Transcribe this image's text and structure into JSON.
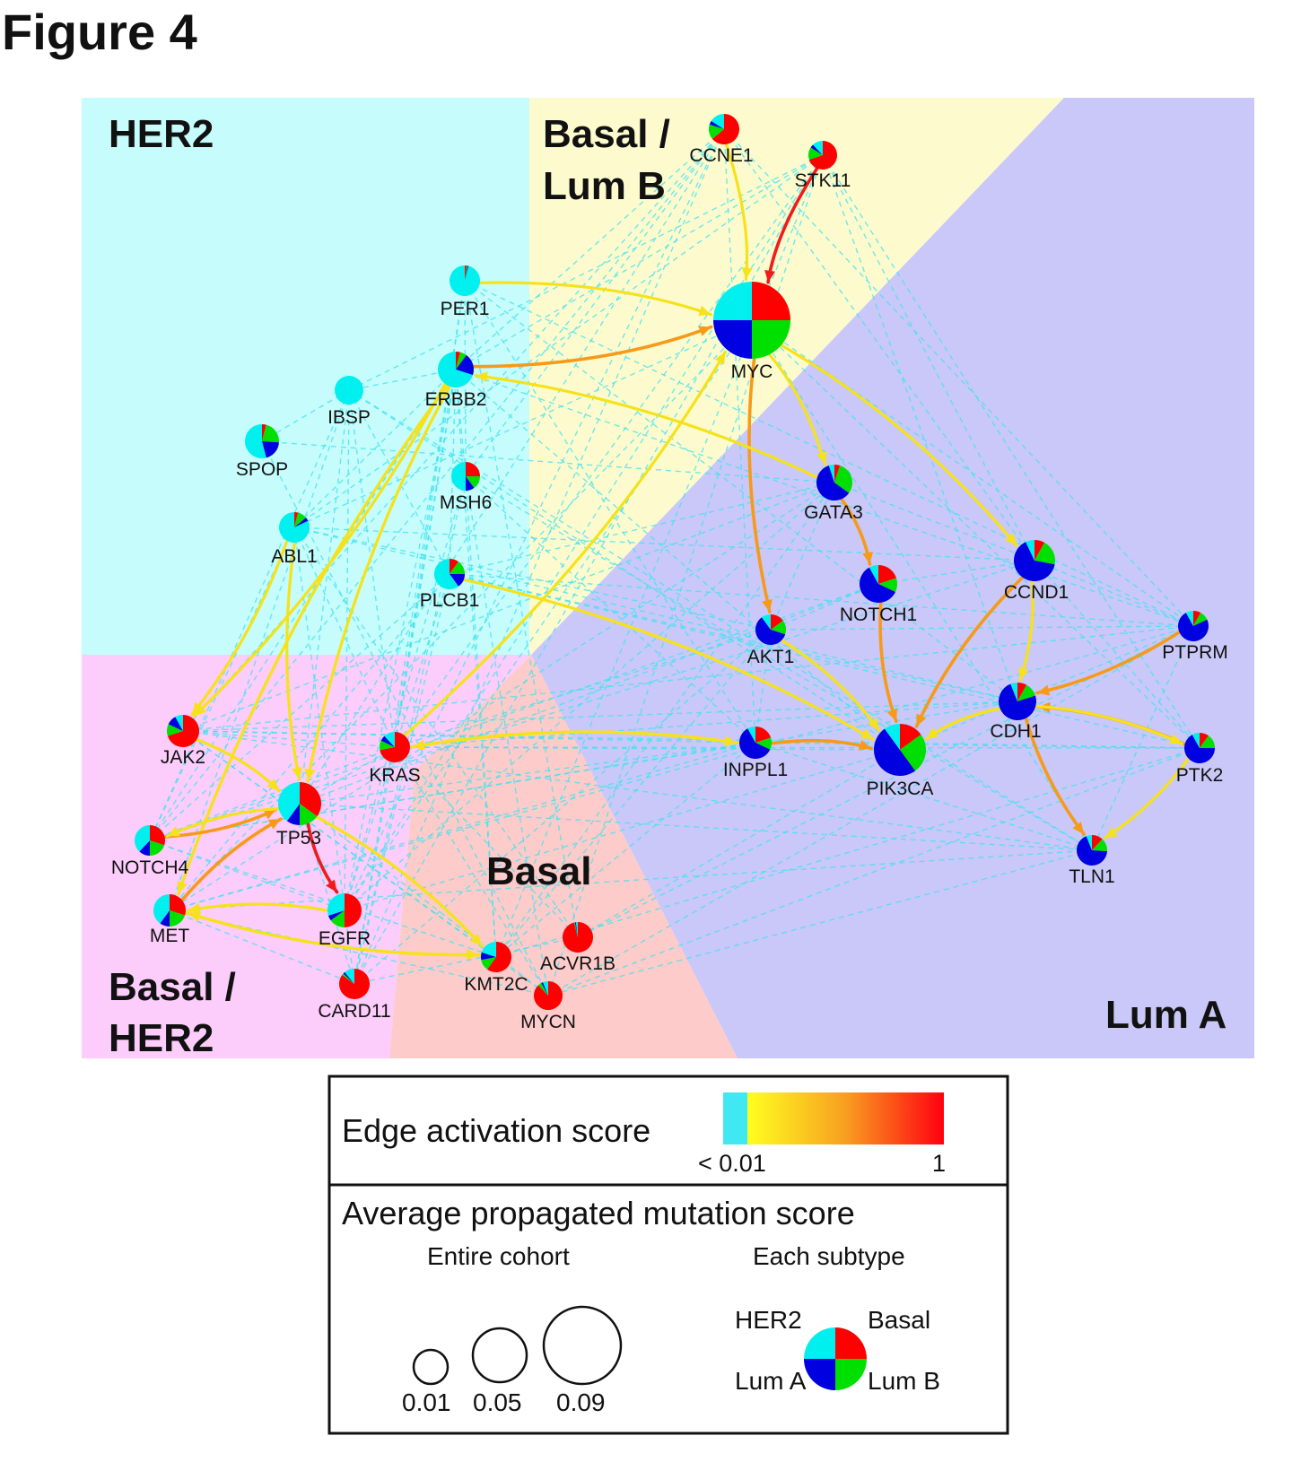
{
  "title": "Figure 4",
  "regions": [
    {
      "id": "her2",
      "label_lines": [
        "HER2"
      ],
      "color": "#c6fcfc"
    },
    {
      "id": "basal-lumb",
      "label_lines": [
        "Basal /",
        "Lum B"
      ],
      "color": "#fdfbce"
    },
    {
      "id": "luma",
      "label_lines": [
        "Lum A"
      ],
      "color": "#c9c8f8"
    },
    {
      "id": "basal-her2",
      "label_lines": [
        "Basal /",
        "HER2"
      ],
      "color": "#fcccfa"
    },
    {
      "id": "basal",
      "label_lines": [
        "Basal"
      ],
      "color": "#fdcbca"
    }
  ],
  "subtype_colors": {
    "HER2": "#00f0f0",
    "Basal": "#ff0000",
    "LumA": "#0000e0",
    "LumB": "#00e000"
  },
  "edge_colors": {
    "low": "#3fe3f0",
    "yellow": "#f6e21a",
    "orange": "#f79a1a",
    "red": "#ee1c1c"
  },
  "nodes": [
    {
      "id": "CCNE1",
      "label": "CCNE1",
      "fr": [
        0.64,
        0.16,
        0.04,
        0.16
      ]
    },
    {
      "id": "STK11",
      "label": "STK11",
      "fr": [
        0.7,
        0.14,
        0.04,
        0.12
      ]
    },
    {
      "id": "PER1",
      "label": "PER1",
      "fr": [
        0.02,
        0.01,
        0.01,
        0.96
      ]
    },
    {
      "id": "MYC",
      "label": "MYC",
      "fr": [
        0.25,
        0.25,
        0.25,
        0.25
      ]
    },
    {
      "id": "ERBB2",
      "label": "ERBB2",
      "fr": [
        0.04,
        0.06,
        0.2,
        0.7
      ]
    },
    {
      "id": "IBSP",
      "label": "IBSP",
      "fr": [
        0,
        0,
        0,
        1
      ]
    },
    {
      "id": "SPOP",
      "label": "SPOP",
      "fr": [
        0.04,
        0.22,
        0.2,
        0.54
      ]
    },
    {
      "id": "MSH6",
      "label": "MSH6",
      "fr": [
        0.25,
        0.15,
        0.1,
        0.5
      ]
    },
    {
      "id": "ABL1",
      "label": "ABL1",
      "fr": [
        0.04,
        0.1,
        0.04,
        0.82
      ]
    },
    {
      "id": "PLCB1",
      "label": "PLCB1",
      "fr": [
        0.1,
        0.15,
        0.15,
        0.6
      ]
    },
    {
      "id": "GATA3",
      "label": "GATA3",
      "fr": [
        0.05,
        0.3,
        0.6,
        0.05
      ]
    },
    {
      "id": "CCND1",
      "label": "CCND1",
      "fr": [
        0.08,
        0.2,
        0.65,
        0.07
      ]
    },
    {
      "id": "NOTCH1",
      "label": "NOTCH1",
      "fr": [
        0.2,
        0.12,
        0.6,
        0.08
      ]
    },
    {
      "id": "AKT1",
      "label": "AKT1",
      "fr": [
        0.15,
        0.15,
        0.6,
        0.1
      ]
    },
    {
      "id": "PTPRM",
      "label": "PTPRM",
      "fr": [
        0.08,
        0.1,
        0.74,
        0.08
      ]
    },
    {
      "id": "CDH1",
      "label": "CDH1",
      "fr": [
        0.08,
        0.12,
        0.74,
        0.06
      ]
    },
    {
      "id": "JAK2",
      "label": "JAK2",
      "fr": [
        0.7,
        0.12,
        0.1,
        0.08
      ]
    },
    {
      "id": "KRAS",
      "label": "KRAS",
      "fr": [
        0.72,
        0.1,
        0.06,
        0.12
      ]
    },
    {
      "id": "INPPL1",
      "label": "INPPL1",
      "fr": [
        0.2,
        0.12,
        0.6,
        0.08
      ]
    },
    {
      "id": "PIK3CA",
      "label": "PIK3CA",
      "fr": [
        0.15,
        0.25,
        0.5,
        0.1
      ]
    },
    {
      "id": "PTK2",
      "label": "PTK2",
      "fr": [
        0.1,
        0.15,
        0.67,
        0.08
      ]
    },
    {
      "id": "TP53",
      "label": "TP53",
      "fr": [
        0.35,
        0.15,
        0.1,
        0.4
      ]
    },
    {
      "id": "NOTCH4",
      "label": "NOTCH4",
      "fr": [
        0.3,
        0.2,
        0.12,
        0.38
      ]
    },
    {
      "id": "TLN1",
      "label": "TLN1",
      "fr": [
        0.12,
        0.14,
        0.68,
        0.06
      ]
    },
    {
      "id": "MET",
      "label": "MET",
      "fr": [
        0.3,
        0.2,
        0.1,
        0.4
      ]
    },
    {
      "id": "EGFR",
      "label": "EGFR",
      "fr": [
        0.5,
        0.15,
        0.05,
        0.3
      ]
    },
    {
      "id": "KMT2C",
      "label": "KMT2C",
      "fr": [
        0.6,
        0.12,
        0.08,
        0.2
      ]
    },
    {
      "id": "ACVR1B",
      "label": "ACVR1B",
      "fr": [
        0.96,
        0.01,
        0.01,
        0.02
      ]
    },
    {
      "id": "CARD11",
      "label": "CARD11",
      "fr": [
        0.85,
        0.02,
        0.02,
        0.11
      ]
    },
    {
      "id": "MYCN",
      "label": "MYCN",
      "fr": [
        0.88,
        0.04,
        0.02,
        0.06
      ]
    }
  ],
  "edges": [
    {
      "s": "CCNE1",
      "t": "MYC",
      "c": "yellow"
    },
    {
      "s": "STK11",
      "t": "MYC",
      "c": "red"
    },
    {
      "s": "PER1",
      "t": "MYC",
      "c": "yellow"
    },
    {
      "s": "ERBB2",
      "t": "MYC",
      "c": "orange"
    },
    {
      "s": "MYC",
      "t": "GATA3",
      "c": "yellow"
    },
    {
      "s": "MYC",
      "t": "AKT1",
      "c": "orange"
    },
    {
      "s": "MYC",
      "t": "CCND1",
      "c": "yellow"
    },
    {
      "s": "GATA3",
      "t": "ERBB2",
      "c": "yellow"
    },
    {
      "s": "GATA3",
      "t": "NOTCH1",
      "c": "orange"
    },
    {
      "s": "ERBB2",
      "t": "TP53",
      "c": "yellow"
    },
    {
      "s": "ERBB2",
      "t": "JAK2",
      "c": "yellow"
    },
    {
      "s": "ERBB2",
      "t": "MET",
      "c": "yellow"
    },
    {
      "s": "ABL1",
      "t": "JAK2",
      "c": "yellow"
    },
    {
      "s": "ABL1",
      "t": "TP53",
      "c": "yellow"
    },
    {
      "s": "PLCB1",
      "t": "PIK3CA",
      "c": "yellow"
    },
    {
      "s": "KRAS",
      "t": "MYC",
      "c": "yellow"
    },
    {
      "s": "KRAS",
      "t": "INPPL1",
      "c": "yellow"
    },
    {
      "s": "INPPL1",
      "t": "KRAS",
      "c": "yellow"
    },
    {
      "s": "INPPL1",
      "t": "PIK3CA",
      "c": "orange"
    },
    {
      "s": "NOTCH1",
      "t": "PIK3CA",
      "c": "orange"
    },
    {
      "s": "AKT1",
      "t": "PIK3CA",
      "c": "yellow"
    },
    {
      "s": "CCND1",
      "t": "PIK3CA",
      "c": "orange"
    },
    {
      "s": "CCND1",
      "t": "CDH1",
      "c": "yellow"
    },
    {
      "s": "CDH1",
      "t": "PIK3CA",
      "c": "yellow"
    },
    {
      "s": "PTPRM",
      "t": "CDH1",
      "c": "orange"
    },
    {
      "s": "PTK2",
      "t": "CDH1",
      "c": "orange"
    },
    {
      "s": "CDH1",
      "t": "PTK2",
      "c": "yellow"
    },
    {
      "s": "CDH1",
      "t": "TLN1",
      "c": "orange"
    },
    {
      "s": "PTK2",
      "t": "TLN1",
      "c": "yellow"
    },
    {
      "s": "TP53",
      "t": "EGFR",
      "c": "red"
    },
    {
      "s": "TP53",
      "t": "KMT2C",
      "c": "yellow"
    },
    {
      "s": "NOTCH4",
      "t": "TP53",
      "c": "orange"
    },
    {
      "s": "MET",
      "t": "TP53",
      "c": "orange"
    },
    {
      "s": "MET",
      "t": "KMT2C",
      "c": "yellow"
    },
    {
      "s": "KMT2C",
      "t": "MET",
      "c": "yellow"
    },
    {
      "s": "EGFR",
      "t": "MET",
      "c": "yellow"
    },
    {
      "s": "JAK2",
      "t": "TP53",
      "c": "yellow"
    },
    {
      "s": "TP53",
      "t": "NOTCH4",
      "c": "yellow"
    }
  ],
  "legend": {
    "edge_title": "Edge activation score",
    "edge_min": "< 0.01",
    "edge_max": "1",
    "mutation_title": "Average propagated mutation score",
    "entire_cohort": "Entire cohort",
    "each_subtype": "Each subtype",
    "size_labels": [
      "0.01",
      "0.05",
      "0.09"
    ],
    "subtype_labels": {
      "HER2": "HER2",
      "Basal": "Basal",
      "LumA": "Lum A",
      "LumB": "Lum B"
    }
  }
}
